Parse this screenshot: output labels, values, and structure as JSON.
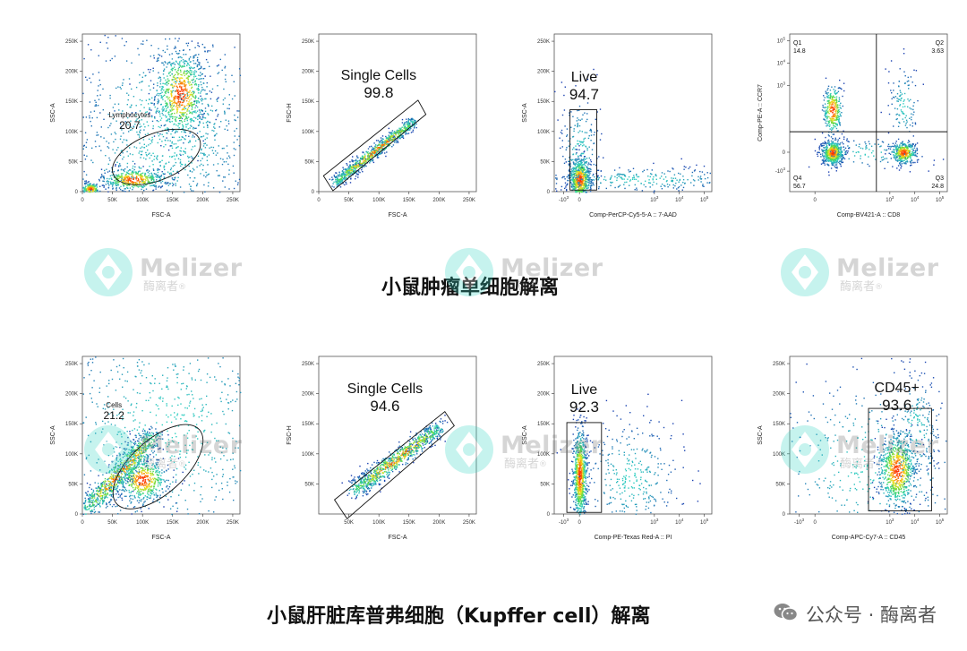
{
  "chart_data": [
    {
      "id": "p1",
      "type": "scatter",
      "xlabel": "FSC-A",
      "ylabel": "SSC-A",
      "xticks": [
        {
          "v": 0,
          "t": "0"
        },
        {
          "v": 50,
          "t": "50K"
        },
        {
          "v": 100,
          "t": "100K"
        },
        {
          "v": 150,
          "t": "150K"
        },
        {
          "v": 200,
          "t": "200K"
        },
        {
          "v": 250,
          "t": "250K"
        }
      ],
      "yticks": [
        {
          "v": 0,
          "t": "0"
        },
        {
          "v": 50,
          "t": "50K"
        },
        {
          "v": 100,
          "t": "100K"
        },
        {
          "v": 150,
          "t": "150K"
        },
        {
          "v": 200,
          "t": "200K"
        },
        {
          "v": 250,
          "t": "250K"
        }
      ],
      "gate": {
        "name": "Lymphocytes",
        "value": "20.7"
      }
    },
    {
      "id": "p2",
      "type": "scatter",
      "xlabel": "FSC-A",
      "ylabel": "FSC-H",
      "xticks": [
        {
          "v": 0,
          "t": "0"
        },
        {
          "v": 50,
          "t": "50K"
        },
        {
          "v": 100,
          "t": "100K"
        },
        {
          "v": 150,
          "t": "150K"
        },
        {
          "v": 200,
          "t": "200K"
        },
        {
          "v": 250,
          "t": "250K"
        }
      ],
      "yticks": [
        {
          "v": 0,
          "t": "0"
        },
        {
          "v": 50,
          "t": "50K"
        },
        {
          "v": 100,
          "t": "100K"
        },
        {
          "v": 150,
          "t": "150K"
        },
        {
          "v": 200,
          "t": "200K"
        },
        {
          "v": 250,
          "t": "250K"
        }
      ],
      "gate": {
        "name": "Single Cells",
        "value": "99.8"
      }
    },
    {
      "id": "p3",
      "type": "scatter",
      "xlabel": "Comp-PerCP-Cy5-5-A :: 7-AAD",
      "ylabel": "SSC-A",
      "xticks": [
        {
          "v": -3,
          "t": "-10",
          "sup": "3"
        },
        {
          "v": 0,
          "t": "0"
        },
        {
          "v": 3,
          "t": "10",
          "sup": "3"
        },
        {
          "v": 4,
          "t": "10",
          "sup": "4"
        },
        {
          "v": 5,
          "t": "10",
          "sup": "5"
        }
      ],
      "yticks": [
        {
          "v": 0,
          "t": "0"
        },
        {
          "v": 50,
          "t": "50K"
        },
        {
          "v": 100,
          "t": "100K"
        },
        {
          "v": 150,
          "t": "150K"
        },
        {
          "v": 200,
          "t": "200K"
        },
        {
          "v": 250,
          "t": "250K"
        }
      ],
      "gate": {
        "name": "Live",
        "value": "94.7"
      }
    },
    {
      "id": "p4",
      "type": "scatter",
      "xlabel": "Comp-BV421-A :: CD8",
      "ylabel": "Comp-PE-A :: CCR7",
      "xticks": [
        {
          "v": 0,
          "t": "0"
        },
        {
          "v": 3,
          "t": "10",
          "sup": "3"
        },
        {
          "v": 4,
          "t": "10",
          "sup": "4"
        },
        {
          "v": 5,
          "t": "10",
          "sup": "5"
        }
      ],
      "yticks": [
        {
          "v": -3,
          "t": "-10",
          "sup": "3"
        },
        {
          "v": 0,
          "t": "0"
        },
        {
          "v": 3,
          "t": "10",
          "sup": "3"
        },
        {
          "v": 4,
          "t": "10",
          "sup": "4"
        },
        {
          "v": 5,
          "t": "10",
          "sup": "5"
        }
      ],
      "quadrants": [
        {
          "name": "Q1",
          "value": "14.8"
        },
        {
          "name": "Q2",
          "value": "3.63"
        },
        {
          "name": "Q3",
          "value": "24.8"
        },
        {
          "name": "Q4",
          "value": "56.7"
        }
      ]
    },
    {
      "id": "p5",
      "type": "scatter",
      "xlabel": "FSC-A",
      "ylabel": "SSC-A",
      "xticks": [
        {
          "v": 0,
          "t": "0"
        },
        {
          "v": 50,
          "t": "50K"
        },
        {
          "v": 100,
          "t": "100K"
        },
        {
          "v": 150,
          "t": "150K"
        },
        {
          "v": 200,
          "t": "200K"
        },
        {
          "v": 250,
          "t": "250K"
        }
      ],
      "yticks": [
        {
          "v": 0,
          "t": "0"
        },
        {
          "v": 50,
          "t": "50K"
        },
        {
          "v": 100,
          "t": "100K"
        },
        {
          "v": 150,
          "t": "150K"
        },
        {
          "v": 200,
          "t": "200K"
        },
        {
          "v": 250,
          "t": "250K"
        }
      ],
      "gate": {
        "name": "Cells",
        "value": "21.2"
      }
    },
    {
      "id": "p6",
      "type": "scatter",
      "xlabel": "FSC-A",
      "ylabel": "FSC-H",
      "xticks": [
        {
          "v": 50,
          "t": "50K"
        },
        {
          "v": 100,
          "t": "100K"
        },
        {
          "v": 150,
          "t": "150K"
        },
        {
          "v": 200,
          "t": "200K"
        },
        {
          "v": 250,
          "t": "250K"
        }
      ],
      "yticks": [
        {
          "v": 50,
          "t": "50K"
        },
        {
          "v": 100,
          "t": "100K"
        },
        {
          "v": 150,
          "t": "150K"
        },
        {
          "v": 200,
          "t": "200K"
        },
        {
          "v": 250,
          "t": "250K"
        }
      ],
      "gate": {
        "name": "Single Cells",
        "value": "94.6"
      }
    },
    {
      "id": "p7",
      "type": "scatter",
      "xlabel": "Comp-PE-Texas Red-A :: PI",
      "ylabel": "SSC-A",
      "xticks": [
        {
          "v": -3,
          "t": "-10",
          "sup": "3"
        },
        {
          "v": 0,
          "t": "0"
        },
        {
          "v": 3,
          "t": "10",
          "sup": "3"
        },
        {
          "v": 4,
          "t": "10",
          "sup": "4"
        },
        {
          "v": 5,
          "t": "10",
          "sup": "5"
        }
      ],
      "yticks": [
        {
          "v": 0,
          "t": "0"
        },
        {
          "v": 50,
          "t": "50K"
        },
        {
          "v": 100,
          "t": "100K"
        },
        {
          "v": 150,
          "t": "150K"
        },
        {
          "v": 200,
          "t": "200K"
        },
        {
          "v": 250,
          "t": "250K"
        }
      ],
      "gate": {
        "name": "Live",
        "value": "92.3"
      }
    },
    {
      "id": "p8",
      "type": "scatter",
      "xlabel": "Comp-APC-Cy7-A :: CD45",
      "ylabel": "SSC-A",
      "xticks": [
        {
          "v": -3,
          "t": "-10",
          "sup": "3"
        },
        {
          "v": 0,
          "t": "0"
        },
        {
          "v": 3,
          "t": "10",
          "sup": "3"
        },
        {
          "v": 4,
          "t": "10",
          "sup": "4"
        },
        {
          "v": 5,
          "t": "10",
          "sup": "5"
        }
      ],
      "yticks": [
        {
          "v": 0,
          "t": "0"
        },
        {
          "v": 50,
          "t": "50K"
        },
        {
          "v": 100,
          "t": "100K"
        },
        {
          "v": 150,
          "t": "150K"
        },
        {
          "v": 200,
          "t": "200K"
        },
        {
          "v": 250,
          "t": "250K"
        }
      ],
      "gate": {
        "name": "CD45+",
        "value": "93.6"
      }
    }
  ],
  "captions": {
    "top": "小鼠肿瘤单细胞解离",
    "bottom": "小鼠肝脏库普弗细胞（Kupffer cell）解离"
  },
  "watermark": {
    "brand": "Melizer",
    "sub": "酶离者",
    "reg": "®",
    "color": "#35d6c3"
  },
  "footer": {
    "icon": "wechat-icon",
    "text": "公众号 · 酶离者"
  },
  "colors": {
    "density_low": "#1a3cb0",
    "density_mid": "#2fd0c0",
    "density_high": "#ff2a00"
  }
}
